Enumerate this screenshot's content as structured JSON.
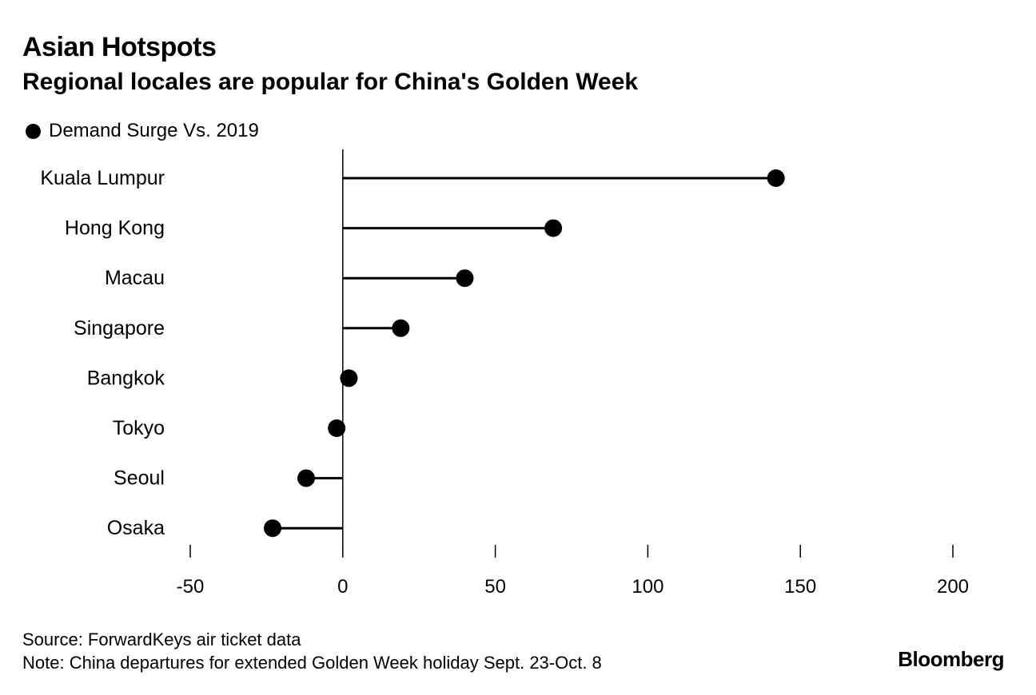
{
  "chart_data": {
    "type": "scatter",
    "style": "lollipop",
    "orientation": "horizontal",
    "title": "Asian Hotspots",
    "subtitle": "Regional locales are popular for China's Golden Week",
    "legend": [
      "Demand Surge Vs. 2019"
    ],
    "legend_position": "top-left",
    "categories": [
      "Kuala Lumpur",
      "Hong Kong",
      "Macau",
      "Singapore",
      "Bangkok",
      "Tokyo",
      "Seoul",
      "Osaka"
    ],
    "series": [
      {
        "name": "Demand Surge Vs. 2019",
        "values": [
          142,
          69,
          40,
          19,
          2,
          -2,
          -12,
          -23
        ]
      }
    ],
    "xlim": [
      -50,
      200
    ],
    "xticks": [
      -50,
      0,
      50,
      100,
      150,
      200
    ],
    "xtick_labels": [
      "-50",
      "0",
      "50",
      "100",
      "150",
      "200"
    ],
    "xlabel": "",
    "ylabel": "",
    "grid": false
  },
  "footer": {
    "source": "Source: ForwardKeys air ticket data",
    "note": "Note: China departures for extended Golden Week holiday Sept. 23-Oct. 8",
    "brand": "Bloomberg"
  },
  "colors": {
    "marker": "#000000",
    "axis": "#000000",
    "text": "#000000",
    "background": "#ffffff"
  }
}
